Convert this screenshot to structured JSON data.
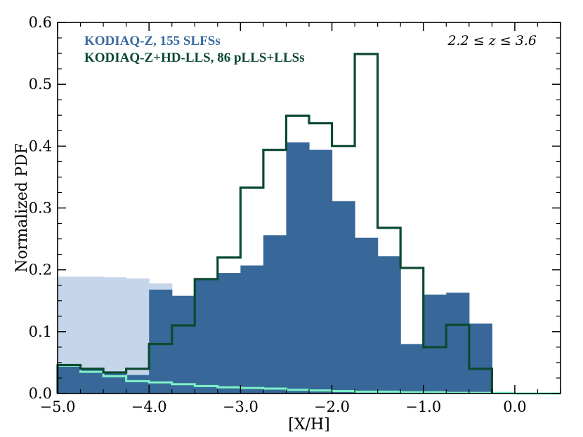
{
  "chart_data": {
    "type": "bar",
    "xlabel": "[X/H]",
    "ylabel": "Normalized PDF",
    "xlim": [
      -5.0,
      0.5
    ],
    "ylim": [
      0.0,
      0.6
    ],
    "xticks": [
      -5.0,
      -4.0,
      -3.0,
      -2.0,
      -1.0,
      0.0
    ],
    "xtick_labels": [
      "−5.0",
      "−4.0",
      "−3.0",
      "−2.0",
      "−1.0",
      "0.0"
    ],
    "yticks": [
      0.0,
      0.1,
      0.2,
      0.3,
      0.4,
      0.5,
      0.6
    ],
    "ytick_labels": [
      "0.0",
      "0.1",
      "0.2",
      "0.3",
      "0.4",
      "0.5",
      "0.6"
    ],
    "annotation": "2.2 ≤ z ≤ 3.6",
    "legend": {
      "placement": "top-left",
      "entries": [
        {
          "label": "KODIAQ-Z, 155 SLFSs",
          "color": "#3a6aa0"
        },
        {
          "label": "KODIAQ-Z+HD-LLS, 86 pLLS+LLSs",
          "color": "#0b4a30"
        }
      ]
    },
    "series": [
      {
        "name": "KODIAQ-Z, 155 SLFSs (upper limits)",
        "style": "filled-step",
        "color": "#c5d6ea",
        "bin_edges": [
          -5.0,
          -4.75,
          -4.5,
          -4.25,
          -4.0,
          -3.75,
          -3.5,
          -3.25,
          -3.0,
          -2.75,
          -2.5,
          -2.25,
          -2.0,
          -1.75,
          -1.5,
          -1.25,
          -1.0,
          -0.75,
          -0.5,
          -0.25,
          0.0,
          0.25,
          0.5
        ],
        "values": [
          0.189,
          0.189,
          0.188,
          0.186,
          0.178,
          0.142,
          0.124,
          0.102,
          0.065,
          0.047,
          0.036,
          0.025,
          0.018,
          0.012,
          0.009,
          0.006,
          0.004,
          0.003,
          0.002,
          0.002,
          0.001,
          0.001
        ]
      },
      {
        "name": "KODIAQ-Z, 155 SLFSs",
        "style": "filled-step",
        "color": "#386899",
        "bin_edges": [
          -5.0,
          -4.75,
          -4.5,
          -4.25,
          -4.0,
          -3.75,
          -3.5,
          -3.25,
          -3.0,
          -2.75,
          -2.5,
          -2.25,
          -2.0,
          -1.75,
          -1.5,
          -1.25,
          -1.0,
          -0.75,
          -0.5,
          -0.25,
          0.0,
          0.25,
          0.5
        ],
        "values": [
          0.045,
          0.04,
          0.035,
          0.03,
          0.168,
          0.158,
          0.184,
          0.195,
          0.207,
          0.256,
          0.406,
          0.394,
          0.311,
          0.252,
          0.222,
          0.08,
          0.16,
          0.163,
          0.113,
          0.002,
          0.001,
          0.001
        ]
      },
      {
        "name": "KODIAQ-Z, 155 SLFSs (lower limits)",
        "style": "step-line",
        "color": "#7df2c8",
        "bin_edges": [
          -5.0,
          -4.75,
          -4.5,
          -4.25,
          -4.0,
          -3.75,
          -3.5,
          -3.25,
          -3.0,
          -2.75,
          -2.5,
          -2.25,
          -2.0,
          -1.75,
          -1.5,
          -1.25,
          -1.0,
          -0.75,
          -0.5,
          -0.25,
          0.0,
          0.25,
          0.5
        ],
        "values": [
          0.045,
          0.035,
          0.028,
          0.02,
          0.018,
          0.015,
          0.012,
          0.01,
          0.009,
          0.008,
          0.006,
          0.005,
          0.004,
          0.003,
          0.003,
          0.002,
          0.002,
          0.001,
          0.001,
          0.001,
          0.0,
          0.0
        ]
      },
      {
        "name": "KODIAQ-Z+HD-LLS, 86 pLLS+LLSs",
        "style": "step-line",
        "color": "#0b4a30",
        "bin_edges": [
          -5.0,
          -4.75,
          -4.5,
          -4.25,
          -4.0,
          -3.75,
          -3.5,
          -3.25,
          -3.0,
          -2.75,
          -2.5,
          -2.25,
          -2.0,
          -1.75,
          -1.5,
          -1.25,
          -1.0,
          -0.75,
          -0.5,
          -0.25
        ],
        "values": [
          0.046,
          0.04,
          0.034,
          0.04,
          0.08,
          0.11,
          0.185,
          0.22,
          0.333,
          0.394,
          0.449,
          0.437,
          0.4,
          0.549,
          0.268,
          0.203,
          0.075,
          0.111,
          0.04
        ]
      }
    ]
  }
}
